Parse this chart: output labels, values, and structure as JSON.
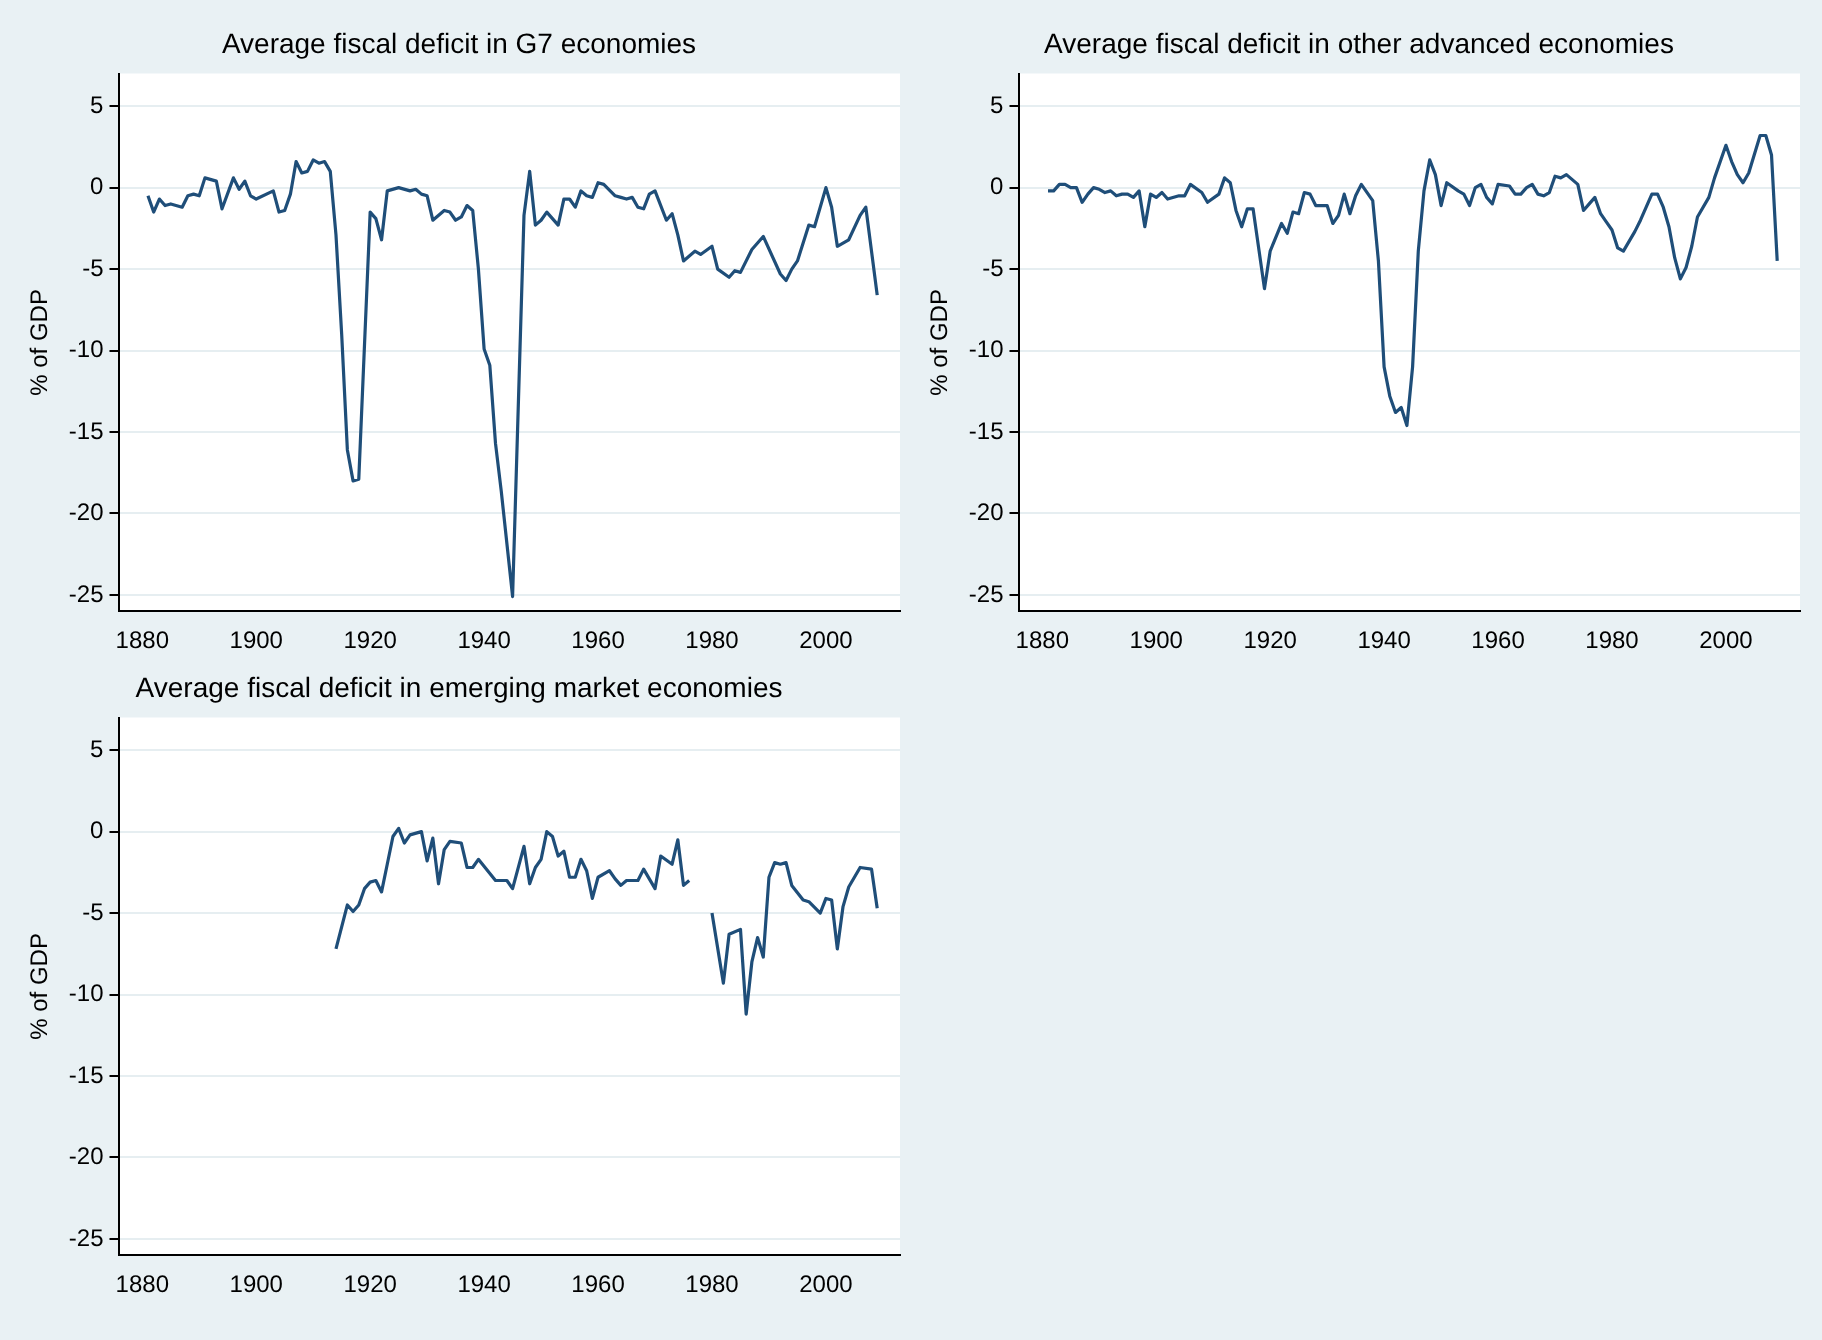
{
  "chart_data": [
    {
      "type": "line",
      "title": "Average fiscal deficit in G7 economies",
      "ylabel": "% of GDP",
      "xlim": [
        1876,
        2013
      ],
      "xticks": [
        1880,
        1900,
        1920,
        1940,
        1960,
        1980,
        2000
      ],
      "ylim": [
        -26,
        7
      ],
      "yticks": [
        5,
        0,
        -5,
        -10,
        -15,
        -20,
        -25
      ],
      "grid": "y",
      "legend": false,
      "marker": "none",
      "series": [
        {
          "color": "#1f4e79",
          "x": [
            1881,
            1882,
            1883,
            1884,
            1885,
            1887,
            1888,
            1889,
            1890,
            1891,
            1893,
            1894,
            1896,
            1897,
            1898,
            1899,
            1900,
            1903,
            1904,
            1905,
            1906,
            1907,
            1908,
            1909,
            1910,
            1911,
            1912,
            1913,
            1914,
            1915,
            1916,
            1917,
            1918,
            1920,
            1921,
            1922,
            1923,
            1925,
            1927,
            1928,
            1929,
            1930,
            1931,
            1933,
            1934,
            1935,
            1936,
            1937,
            1938,
            1939,
            1940,
            1941,
            1942,
            1943,
            1945,
            1947,
            1948,
            1949,
            1950,
            1951,
            1953,
            1954,
            1955,
            1956,
            1957,
            1958,
            1959,
            1960,
            1961,
            1963,
            1964,
            1965,
            1966,
            1967,
            1968,
            1969,
            1970,
            1972,
            1973,
            1974,
            1975,
            1977,
            1978,
            1980,
            1981,
            1983,
            1984,
            1985,
            1987,
            1989,
            1992,
            1993,
            1994,
            1995,
            1997,
            1998,
            2000,
            2001,
            2002,
            2004,
            2006,
            2007,
            2009
          ],
          "values": [
            -0.5,
            -1.5,
            -0.7,
            -1.1,
            -1.0,
            -1.2,
            -0.5,
            -0.4,
            -0.5,
            0.6,
            0.4,
            -1.3,
            0.6,
            -0.1,
            0.4,
            -0.5,
            -0.7,
            -0.2,
            -1.5,
            -1.4,
            -0.4,
            1.6,
            0.9,
            1.0,
            1.7,
            1.5,
            1.6,
            1.0,
            -2.9,
            -9,
            -16.1,
            -18.0,
            -17.9,
            -1.5,
            -1.9,
            -3.2,
            -0.2,
            0,
            -0.2,
            -0.1,
            -0.4,
            -0.5,
            -2.0,
            -1.4,
            -1.5,
            -2.0,
            -1.8,
            -1.1,
            -1.4,
            -5.0,
            -9.9,
            -10.9,
            -15.7,
            -18.6,
            -25.1,
            -1.7,
            1.0,
            -2.3,
            -2.0,
            -1.5,
            -2.3,
            -0.7,
            -0.7,
            -1.2,
            -0.2,
            -0.5,
            -0.6,
            0.3,
            0.2,
            -0.5,
            -0.6,
            -0.7,
            -0.6,
            -1.2,
            -1.3,
            -0.4,
            -0.2,
            -2.0,
            -1.6,
            -2.9,
            -4.5,
            -3.9,
            -4.1,
            -3.6,
            -5.0,
            -5.5,
            -5.1,
            -5.2,
            -3.8,
            -3.0,
            -5.3,
            -5.7,
            -5.0,
            -4.5,
            -2.3,
            -2.4,
            0,
            -1.2,
            -3.6,
            -3.2,
            -1.7,
            -1.2,
            -6.6
          ]
        }
      ]
    },
    {
      "type": "line",
      "title": "Average fiscal deficit in other advanced economies",
      "ylabel": "% of GDP",
      "xlim": [
        1876,
        2013
      ],
      "xticks": [
        1880,
        1900,
        1920,
        1940,
        1960,
        1980,
        2000
      ],
      "ylim": [
        -26,
        7
      ],
      "yticks": [
        5,
        0,
        -5,
        -10,
        -15,
        -20,
        -25
      ],
      "grid": "y",
      "legend": false,
      "marker": "none",
      "series": [
        {
          "color": "#1f4e79",
          "x": [
            1881,
            1882,
            1883,
            1884,
            1885,
            1886,
            1887,
            1888,
            1889,
            1890,
            1891,
            1892,
            1893,
            1894,
            1895,
            1896,
            1897,
            1898,
            1899,
            1900,
            1901,
            1902,
            1904,
            1905,
            1906,
            1908,
            1909,
            1911,
            1912,
            1913,
            1914,
            1915,
            1916,
            1917,
            1919,
            1920,
            1922,
            1923,
            1924,
            1925,
            1926,
            1927,
            1928,
            1930,
            1931,
            1932,
            1933,
            1934,
            1935,
            1936,
            1938,
            1939,
            1940,
            1941,
            1942,
            1943,
            1944,
            1945,
            1946,
            1947,
            1948,
            1949,
            1950,
            1951,
            1953,
            1954,
            1955,
            1956,
            1957,
            1958,
            1959,
            1960,
            1962,
            1963,
            1964,
            1965,
            1966,
            1967,
            1968,
            1969,
            1970,
            1971,
            1972,
            1974,
            1975,
            1976,
            1977,
            1978,
            1979,
            1980,
            1981,
            1982,
            1984,
            1985,
            1987,
            1988,
            1989,
            1990,
            1991,
            1992,
            1993,
            1994,
            1995,
            1997,
            1998,
            2000,
            2001,
            2002,
            2003,
            2004,
            2006,
            2007,
            2008,
            2009
          ],
          "values": [
            -0.2,
            -0.2,
            0.2,
            0.2,
            0,
            0,
            -0.9,
            -0.4,
            0,
            -0.1,
            -0.3,
            -0.2,
            -0.5,
            -0.4,
            -0.4,
            -0.6,
            -0.2,
            -2.4,
            -0.4,
            -0.6,
            -0.3,
            -0.7,
            -0.5,
            -0.5,
            0.2,
            -0.3,
            -0.9,
            -0.4,
            0.6,
            0.3,
            -1.4,
            -2.4,
            -1.3,
            -1.3,
            -6.2,
            -3.9,
            -2.2,
            -2.8,
            -1.5,
            -1.6,
            -0.3,
            -0.4,
            -1.1,
            -1.1,
            -2.2,
            -1.7,
            -0.4,
            -1.6,
            -0.5,
            0.2,
            -0.8,
            -4.5,
            -11.0,
            -12.8,
            -13.8,
            -13.5,
            -14.6,
            -11.0,
            -3.9,
            -0.2,
            1.7,
            0.8,
            -1.1,
            0.3,
            -0.2,
            -0.4,
            -1.1,
            0,
            0.2,
            -0.6,
            -1.0,
            0.2,
            0.1,
            -0.4,
            -0.4,
            0,
            0.2,
            -0.4,
            -0.5,
            -0.3,
            0.7,
            0.6,
            0.8,
            0.2,
            -1.4,
            -1.0,
            -0.6,
            -1.6,
            -2.1,
            -2.6,
            -3.7,
            -3.9,
            -2.7,
            -2.0,
            -0.4,
            -0.4,
            -1.2,
            -2.4,
            -4.3,
            -5.6,
            -4.9,
            -3.6,
            -1.8,
            -0.6,
            0.6,
            2.6,
            1.6,
            0.8,
            0.3,
            0.9,
            3.2,
            3.2,
            2.0,
            -4.5
          ]
        }
      ]
    },
    {
      "type": "line",
      "title": "Average fiscal deficit in emerging market economies",
      "ylabel": "% of GDP",
      "xlim": [
        1876,
        2013
      ],
      "xticks": [
        1880,
        1900,
        1920,
        1940,
        1960,
        1980,
        2000
      ],
      "ylim": [
        -26,
        7
      ],
      "yticks": [
        5,
        0,
        -5,
        -10,
        -15,
        -20,
        -25
      ],
      "grid": "y",
      "legend": false,
      "marker": "none",
      "series": [
        {
          "color": "#1f4e79",
          "x": [
            1914,
            1916,
            1917,
            1918,
            1919,
            1920,
            1921,
            1922,
            1923,
            1924,
            1925,
            1926,
            1927,
            1929,
            1930,
            1931,
            1932,
            1933,
            1934,
            1936,
            1937,
            1938,
            1939,
            1942,
            1944,
            1945,
            1947,
            1948,
            1949,
            1950,
            1951,
            1952,
            1953,
            1954,
            1955,
            1956,
            1957,
            1958,
            1959,
            1960,
            1962,
            1963,
            1964,
            1965,
            1967,
            1968,
            1970,
            1971,
            1973,
            1974,
            1975,
            1976,
            1978,
            1980,
            1982,
            1983,
            1985,
            1986,
            1987,
            1988,
            1989,
            1990,
            1991,
            1992,
            1993,
            1994,
            1996,
            1997,
            1999,
            2000,
            2001,
            2002,
            2003,
            2004,
            2006,
            2008,
            2009
          ],
          "values": [
            -7.2,
            -4.5,
            -4.9,
            -4.5,
            -3.5,
            -3.1,
            -3.0,
            -3.7,
            -2.0,
            -0.3,
            0.2,
            -0.7,
            -0.2,
            0,
            -1.8,
            -0.4,
            -3.2,
            -1.1,
            -0.6,
            -0.7,
            -2.2,
            -2.2,
            -1.7,
            -3.0,
            -3.0,
            -3.5,
            -0.9,
            -3.2,
            -2.2,
            -1.7,
            0,
            -0.3,
            -1.5,
            -1.2,
            -2.8,
            -2.8,
            -1.7,
            -2.4,
            -4.1,
            -2.8,
            -2.4,
            -2.9,
            -3.3,
            -3.0,
            -3.0,
            -2.3,
            -3.5,
            -1.5,
            -2.0,
            -0.5,
            -3.3,
            -3.0,
            null,
            -5.0,
            -9.3,
            -6.3,
            -6.0,
            -11.2,
            -8.0,
            -6.5,
            -7.7,
            -2.8,
            -1.9,
            -2.0,
            -1.9,
            -3.3,
            -4.2,
            -4.3,
            -5.0,
            -4.1,
            -4.2,
            -7.2,
            -4.6,
            -3.4,
            -2.2,
            -2.3,
            -4.7
          ]
        }
      ]
    }
  ]
}
